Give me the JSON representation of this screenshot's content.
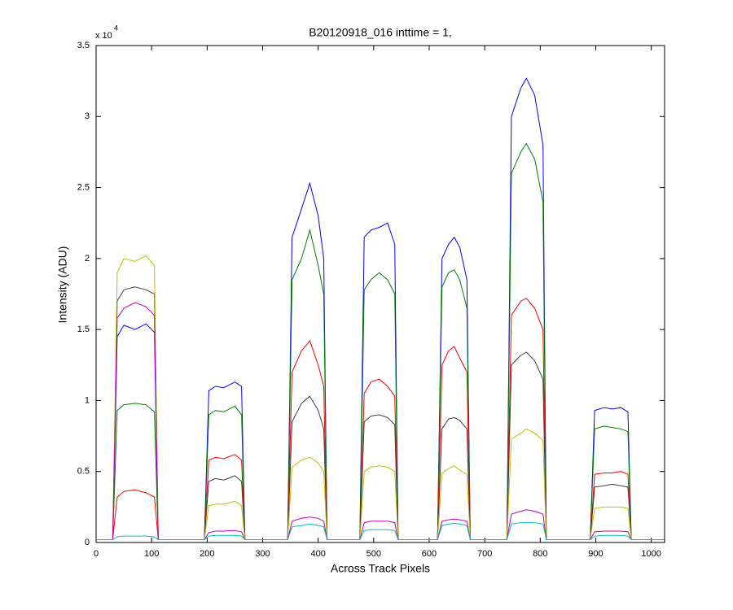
{
  "chart_data": {
    "type": "line",
    "title": "B20120918_016 inttime = 1,",
    "x_label": "Across Track Pixels",
    "y_label": "Intensity (ADU)",
    "y_exponent": "x 10",
    "y_exponent_power": "4",
    "xlim": [
      0,
      1024
    ],
    "ylim": [
      0,
      35000
    ],
    "xticks": [
      0,
      100,
      200,
      300,
      400,
      500,
      600,
      700,
      800,
      900,
      1000
    ],
    "yticks": [
      0,
      {
        "value": 5000,
        "label": "0.5"
      },
      {
        "value": 10000,
        "label": "1"
      },
      {
        "value": 15000,
        "label": "1.5"
      },
      {
        "value": 20000,
        "label": "2"
      },
      {
        "value": 25000,
        "label": "2.5"
      },
      {
        "value": 30000,
        "label": "3"
      },
      {
        "value": 35000,
        "label": "3.5"
      }
    ],
    "grid": false,
    "x": [
      0,
      30,
      38,
      50,
      70,
      90,
      105,
      112,
      195,
      203,
      215,
      230,
      250,
      262,
      268,
      345,
      353,
      370,
      385,
      400,
      410,
      416,
      475,
      483,
      495,
      510,
      525,
      538,
      544,
      615,
      623,
      635,
      645,
      655,
      668,
      674,
      740,
      748,
      765,
      775,
      790,
      805,
      811,
      890,
      898,
      915,
      930,
      945,
      958,
      964,
      1023
    ],
    "series": [
      {
        "color": "#0000ff",
        "values": [
          200,
          200,
          14500,
          15300,
          15000,
          15400,
          14800,
          200,
          200,
          10700,
          11000,
          10900,
          11300,
          11000,
          200,
          200,
          21500,
          23500,
          25300,
          23000,
          20000,
          200,
          200,
          21500,
          22000,
          22200,
          22500,
          21000,
          200,
          200,
          20000,
          21000,
          21500,
          20800,
          18500,
          200,
          200,
          30000,
          32000,
          32700,
          31500,
          28000,
          200,
          200,
          9300,
          9500,
          9400,
          9500,
          9200,
          200,
          200
        ]
      },
      {
        "color": "#008000",
        "values": [
          200,
          200,
          9300,
          9700,
          9800,
          9700,
          9200,
          200,
          200,
          9000,
          9300,
          9200,
          9600,
          9000,
          200,
          200,
          18500,
          20000,
          22000,
          19500,
          17500,
          200,
          200,
          17800,
          18500,
          19000,
          18500,
          17500,
          200,
          200,
          18000,
          19000,
          19200,
          18500,
          16500,
          200,
          200,
          26000,
          27500,
          28100,
          27000,
          24000,
          200,
          200,
          8000,
          8200,
          8100,
          8000,
          7800,
          200,
          200
        ]
      },
      {
        "color": "#ff0000",
        "values": [
          200,
          200,
          3200,
          3600,
          3700,
          3500,
          3200,
          200,
          200,
          5800,
          6000,
          5900,
          6200,
          5800,
          200,
          200,
          12000,
          13500,
          14200,
          12500,
          11000,
          200,
          200,
          10500,
          11300,
          11500,
          11000,
          10300,
          200,
          200,
          12500,
          13500,
          13800,
          13000,
          12000,
          200,
          200,
          16000,
          17000,
          17200,
          16500,
          15000,
          200,
          200,
          4800,
          4900,
          4900,
          5000,
          4800,
          200,
          200
        ]
      },
      {
        "color": "#404040",
        "values": [
          200,
          200,
          17000,
          17800,
          18000,
          17800,
          17500,
          200,
          200,
          4300,
          4500,
          4400,
          4700,
          4300,
          200,
          200,
          8500,
          9800,
          10300,
          9300,
          8000,
          200,
          200,
          8500,
          8900,
          9000,
          8800,
          8300,
          200,
          200,
          8000,
          8700,
          8800,
          8600,
          8000,
          200,
          200,
          12500,
          13200,
          13400,
          12800,
          11500,
          200,
          200,
          3900,
          4000,
          4100,
          4000,
          3900,
          200,
          200
        ]
      },
      {
        "color": "#bfbf00",
        "values": [
          200,
          200,
          19000,
          20000,
          19800,
          20200,
          19500,
          200,
          200,
          2600,
          2700,
          2700,
          2900,
          2600,
          200,
          200,
          5300,
          5800,
          6000,
          5600,
          5000,
          200,
          200,
          5000,
          5300,
          5400,
          5300,
          5000,
          200,
          200,
          4900,
          5200,
          5400,
          5100,
          4800,
          200,
          200,
          7300,
          7700,
          8000,
          7700,
          7200,
          200,
          200,
          2400,
          2500,
          2500,
          2500,
          2400,
          200,
          200
        ]
      },
      {
        "color": "#bf00bf",
        "values": [
          200,
          200,
          15800,
          16500,
          16900,
          16600,
          16000,
          200,
          200,
          700,
          800,
          800,
          850,
          750,
          200,
          200,
          1500,
          1700,
          1800,
          1700,
          1500,
          200,
          200,
          1400,
          1500,
          1500,
          1500,
          1400,
          200,
          200,
          1500,
          1600,
          1650,
          1600,
          1500,
          200,
          200,
          2000,
          2200,
          2300,
          2200,
          2000,
          200,
          200,
          750,
          800,
          800,
          800,
          750,
          200,
          200
        ]
      },
      {
        "color": "#00bfbf",
        "values": [
          200,
          200,
          400,
          450,
          450,
          450,
          400,
          200,
          200,
          450,
          500,
          500,
          500,
          450,
          200,
          200,
          1100,
          1200,
          1300,
          1200,
          1100,
          200,
          200,
          850,
          900,
          900,
          900,
          850,
          200,
          200,
          1200,
          1300,
          1350,
          1300,
          1200,
          200,
          200,
          1300,
          1400,
          1400,
          1400,
          1300,
          200,
          200,
          450,
          500,
          500,
          500,
          450,
          200,
          200
        ]
      }
    ]
  }
}
